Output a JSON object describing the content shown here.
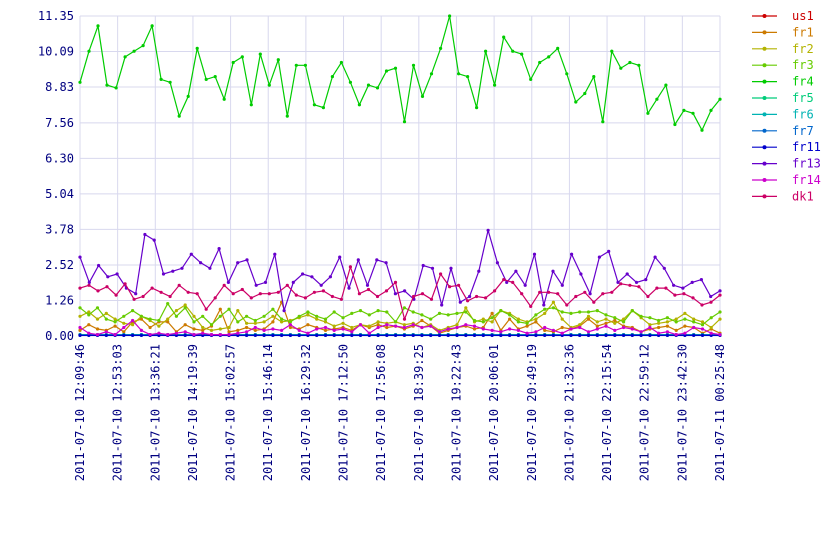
{
  "chart_data": {
    "type": "line",
    "ylim": [
      0,
      11.35
    ],
    "yticks": [
      "0.00",
      "1.26",
      "2.52",
      "3.78",
      "5.04",
      "6.30",
      "7.56",
      "8.83",
      "10.09",
      "11.35"
    ],
    "xticks": [
      "2011-07-10 12:09:46",
      "2011-07-10 12:53:03",
      "2011-07-10 13:36:21",
      "2011-07-10 14:19:39",
      "2011-07-10 15:02:57",
      "2011-07-10 15:46:14",
      "2011-07-10 16:29:32",
      "2011-07-10 17:12:50",
      "2011-07-10 17:56:08",
      "2011-07-10 18:39:25",
      "2011-07-10 19:22:43",
      "2011-07-10 20:06:01",
      "2011-07-10 20:49:19",
      "2011-07-10 21:32:36",
      "2011-07-10 22:15:54",
      "2011-07-10 22:59:12",
      "2011-07-10 23:42:30",
      "2011-07-11 00:25:48"
    ],
    "grid": true,
    "legend_position": "right",
    "series": [
      {
        "name": "us1",
        "color": "#cc0000",
        "values": [
          0.05,
          0.05,
          0.05,
          0.05,
          0.05,
          0.05,
          0.05,
          0.05,
          0.05,
          0.05,
          0.05,
          0.05,
          0.05,
          0.05,
          0.05,
          0.05,
          0.05,
          0.05,
          0.05,
          0.05,
          0.05,
          0.05,
          0.05,
          0.05,
          0.05,
          0.05,
          0.05,
          0.05,
          0.05,
          0.05,
          0.05,
          0.05,
          0.05,
          0.05,
          0.05,
          0.05,
          0.05,
          0.05,
          0.05,
          0.05,
          0.05,
          0.05,
          0.05,
          0.05,
          0.05,
          0.05,
          0.05,
          0.05,
          0.05,
          0.05,
          0.05,
          0.05,
          0.05,
          0.05,
          0.05,
          0.05,
          0.05,
          0.05,
          0.05,
          0.05,
          0.05,
          0.05,
          0.05,
          0.05,
          0.05,
          0.05,
          0.05,
          0.05,
          0.05,
          0.05,
          0.05,
          0.05,
          0.05,
          0.05
        ]
      },
      {
        "name": "fr1",
        "color": "#cc7a00",
        "values": [
          0.2,
          0.4,
          0.25,
          0.2,
          0.35,
          0.15,
          0.5,
          0.6,
          0.3,
          0.5,
          0.5,
          0.15,
          0.4,
          0.25,
          0.2,
          0.35,
          0.95,
          0.15,
          0.2,
          0.3,
          0.2,
          0.25,
          0.5,
          1.2,
          0.3,
          0.25,
          0.4,
          0.3,
          0.2,
          0.25,
          0.3,
          0.2,
          0.4,
          0.3,
          0.4,
          0.3,
          0.35,
          0.25,
          0.35,
          0.55,
          0.35,
          0.1,
          0.2,
          0.3,
          0.35,
          0.25,
          0.3,
          0.8,
          0.2,
          0.6,
          0.25,
          0.35,
          0.5,
          0.2,
          0.15,
          0.3,
          0.25,
          0.35,
          0.6,
          0.35,
          0.45,
          0.55,
          0.35,
          0.3,
          0.15,
          0.25,
          0.3,
          0.35,
          0.2,
          0.35,
          0.3,
          0.1,
          0.25,
          0.1
        ]
      },
      {
        "name": "fr2",
        "color": "#b3b300",
        "values": [
          0.7,
          0.85,
          0.6,
          0.8,
          0.6,
          0.45,
          0.4,
          0.7,
          0.55,
          0.35,
          0.6,
          0.9,
          1.1,
          0.7,
          0.3,
          0.2,
          0.25,
          0.3,
          0.9,
          0.45,
          0.45,
          0.5,
          0.7,
          0.5,
          0.55,
          0.65,
          0.75,
          0.6,
          0.5,
          0.35,
          0.45,
          0.3,
          0.4,
          0.35,
          0.5,
          0.45,
          0.5,
          0.4,
          0.45,
          0.3,
          0.4,
          0.2,
          0.3,
          0.4,
          1.0,
          0.5,
          0.6,
          0.5,
          0.9,
          0.8,
          0.6,
          0.5,
          0.6,
          0.8,
          1.2,
          0.6,
          0.3,
          0.4,
          0.7,
          0.5,
          0.6,
          0.45,
          0.6,
          0.9,
          0.65,
          0.4,
          0.45,
          0.5,
          0.6,
          0.8,
          0.6,
          0.5,
          0.3,
          0.6
        ]
      },
      {
        "name": "fr3",
        "color": "#66cc00",
        "values": [
          1.0,
          0.75,
          1.0,
          0.6,
          0.5,
          0.7,
          0.9,
          0.7,
          0.6,
          0.55,
          1.15,
          0.7,
          1.0,
          0.5,
          0.7,
          0.4,
          0.7,
          0.95,
          0.5,
          0.7,
          0.55,
          0.7,
          0.95,
          0.6,
          0.5,
          0.7,
          0.85,
          0.7,
          0.6,
          0.85,
          0.65,
          0.8,
          0.9,
          0.75,
          0.9,
          0.85,
          0.5,
          1.0,
          0.85,
          0.75,
          0.6,
          0.8,
          0.75,
          0.8,
          0.85,
          0.55,
          0.5,
          0.65,
          0.9,
          0.75,
          0.5,
          0.45,
          0.75,
          0.95,
          1.0,
          0.85,
          0.8,
          0.85,
          0.85,
          0.9,
          0.75,
          0.65,
          0.5,
          0.9,
          0.7,
          0.65,
          0.55,
          0.65,
          0.5,
          0.6,
          0.5,
          0.4,
          0.65,
          0.85
        ]
      },
      {
        "name": "fr4",
        "color": "#00cc00",
        "values": [
          9.0,
          10.1,
          11.0,
          8.9,
          8.8,
          9.9,
          10.1,
          10.3,
          11.0,
          9.1,
          9.0,
          7.8,
          8.5,
          10.2,
          9.1,
          9.2,
          8.4,
          9.7,
          9.9,
          8.2,
          10.0,
          8.9,
          9.8,
          7.8,
          9.6,
          9.6,
          8.2,
          8.1,
          9.2,
          9.7,
          9.0,
          8.2,
          8.9,
          8.8,
          9.4,
          9.5,
          7.6,
          9.6,
          8.5,
          9.3,
          10.2,
          11.35,
          9.3,
          9.2,
          8.1,
          10.1,
          8.9,
          10.6,
          10.1,
          10.0,
          9.1,
          9.7,
          9.9,
          10.2,
          9.3,
          8.3,
          8.6,
          9.2,
          7.6,
          10.1,
          9.5,
          9.7,
          9.6,
          7.9,
          8.4,
          8.9,
          7.5,
          8.0,
          7.9,
          7.3,
          8.0,
          8.4
        ]
      },
      {
        "name": "fr5",
        "color": "#00cc7a",
        "values": [
          0.05,
          0.05,
          0.05,
          0.05,
          0.05,
          0.05,
          0.05,
          0.05,
          0.05,
          0.05,
          0.05,
          0.05,
          0.05,
          0.05,
          0.05,
          0.05,
          0.05,
          0.05,
          0.05,
          0.05,
          0.05,
          0.05,
          0.05,
          0.05,
          0.05,
          0.05,
          0.05,
          0.05,
          0.05,
          0.05,
          0.05,
          0.05,
          0.05,
          0.05,
          0.05,
          0.05,
          0.05,
          0.05,
          0.05,
          0.05,
          0.05,
          0.05,
          0.05,
          0.05,
          0.05,
          0.05,
          0.05,
          0.05,
          0.05,
          0.05,
          0.05,
          0.05,
          0.05,
          0.05,
          0.05,
          0.05,
          0.05,
          0.05,
          0.05,
          0.05,
          0.05,
          0.05,
          0.05,
          0.05,
          0.05,
          0.05,
          0.05,
          0.05,
          0.05,
          0.05,
          0.05,
          0.05,
          0.05,
          0.05
        ]
      },
      {
        "name": "fr6",
        "color": "#00b3b3",
        "values": [
          0.05,
          0.05,
          0.05,
          0.05,
          0.05,
          0.05,
          0.05,
          0.05,
          0.05,
          0.05,
          0.05,
          0.05,
          0.05,
          0.05,
          0.05,
          0.05,
          0.05,
          0.05,
          0.05,
          0.05,
          0.05,
          0.05,
          0.05,
          0.05,
          0.05,
          0.05,
          0.05,
          0.05,
          0.05,
          0.05,
          0.05,
          0.05,
          0.05,
          0.05,
          0.05,
          0.05,
          0.05,
          0.05,
          0.05,
          0.05,
          0.05,
          0.05,
          0.05,
          0.05,
          0.05,
          0.05,
          0.05,
          0.05,
          0.05,
          0.05,
          0.05,
          0.05,
          0.05,
          0.05,
          0.05,
          0.05,
          0.05,
          0.05,
          0.05,
          0.05,
          0.05,
          0.05,
          0.05,
          0.05,
          0.05,
          0.05,
          0.05,
          0.05,
          0.05,
          0.05,
          0.05,
          0.05,
          0.05,
          0.05
        ]
      },
      {
        "name": "fr7",
        "color": "#0066cc",
        "values": [
          0.03,
          0.03,
          0.03,
          0.03,
          0.03,
          0.03,
          0.03,
          0.03,
          0.03,
          0.03,
          0.03,
          0.03,
          0.03,
          0.03,
          0.03,
          0.03,
          0.03,
          0.03,
          0.03,
          0.03,
          0.03,
          0.03,
          0.03,
          0.03,
          0.03,
          0.03,
          0.03,
          0.03,
          0.03,
          0.03,
          0.03,
          0.03,
          0.03,
          0.03,
          0.03,
          0.03,
          0.03,
          0.03,
          0.03,
          0.03,
          0.03,
          0.03,
          0.03,
          0.03,
          0.03,
          0.03,
          0.03,
          0.03,
          0.03,
          0.03,
          0.03,
          0.03,
          0.03,
          0.03,
          0.03,
          0.03,
          0.03,
          0.03,
          0.03,
          0.03,
          0.03,
          0.03,
          0.03,
          0.03,
          0.03,
          0.03,
          0.03,
          0.03,
          0.03,
          0.03,
          0.03,
          0.03,
          0.03,
          0.03
        ]
      },
      {
        "name": "fr11",
        "color": "#0000cc",
        "values": [
          0.02,
          0.02,
          0.02,
          0.02,
          0.02,
          0.02,
          0.02,
          0.02,
          0.02,
          0.02,
          0.02,
          0.02,
          0.02,
          0.02,
          0.02,
          0.02,
          0.02,
          0.02,
          0.02,
          0.02,
          0.02,
          0.02,
          0.02,
          0.02,
          0.02,
          0.02,
          0.02,
          0.02,
          0.02,
          0.02,
          0.02,
          0.02,
          0.02,
          0.02,
          0.02,
          0.02,
          0.02,
          0.02,
          0.02,
          0.02,
          0.02,
          0.02,
          0.02,
          0.02,
          0.02,
          0.02,
          0.02,
          0.02,
          0.02,
          0.02,
          0.02,
          0.02,
          0.02,
          0.02,
          0.02,
          0.02,
          0.02,
          0.02,
          0.02,
          0.02,
          0.02,
          0.02,
          0.02,
          0.02,
          0.02,
          0.02,
          0.02,
          0.02,
          0.02,
          0.02,
          0.02,
          0.02,
          0.02,
          0.02
        ]
      },
      {
        "name": "fr13",
        "color": "#6600cc",
        "values": [
          2.8,
          1.9,
          2.5,
          2.1,
          2.2,
          1.7,
          1.5,
          3.6,
          3.4,
          2.2,
          2.3,
          2.4,
          2.9,
          2.6,
          2.4,
          3.1,
          1.9,
          2.6,
          2.7,
          1.8,
          1.9,
          2.9,
          0.9,
          1.9,
          2.2,
          2.1,
          1.8,
          2.1,
          2.8,
          1.7,
          2.7,
          1.8,
          2.7,
          2.6,
          1.5,
          1.6,
          1.3,
          2.5,
          2.4,
          1.1,
          2.4,
          1.2,
          1.4,
          2.3,
          3.75,
          2.6,
          1.9,
          2.3,
          1.8,
          2.9,
          1.1,
          2.3,
          1.8,
          2.9,
          2.2,
          1.5,
          2.8,
          3.0,
          1.9,
          2.2,
          1.9,
          2.0,
          2.8,
          2.4,
          1.8,
          1.7,
          1.9,
          2.0,
          1.4,
          1.6
        ]
      },
      {
        "name": "fr14",
        "color": "#cc00cc",
        "values": [
          0.3,
          0.1,
          0.05,
          0.15,
          0.05,
          0.3,
          0.55,
          0.2,
          0.05,
          0.1,
          0.05,
          0.1,
          0.15,
          0.05,
          0.1,
          0.05,
          0.05,
          0.05,
          0.1,
          0.15,
          0.3,
          0.2,
          0.25,
          0.2,
          0.4,
          0.2,
          0.1,
          0.25,
          0.3,
          0.2,
          0.25,
          0.15,
          0.4,
          0.1,
          0.3,
          0.4,
          0.35,
          0.3,
          0.4,
          0.3,
          0.35,
          0.15,
          0.25,
          0.3,
          0.4,
          0.35,
          0.25,
          0.2,
          0.15,
          0.25,
          0.2,
          0.1,
          0.15,
          0.3,
          0.2,
          0.1,
          0.25,
          0.3,
          0.15,
          0.25,
          0.35,
          0.2,
          0.3,
          0.25,
          0.15,
          0.3,
          0.1,
          0.15,
          0.05,
          0.1,
          0.3,
          0.25,
          0.1,
          0.05
        ]
      },
      {
        "name": "dk1",
        "color": "#cc0066",
        "values": [
          1.7,
          1.8,
          1.6,
          1.75,
          1.45,
          1.85,
          1.3,
          1.4,
          1.7,
          1.55,
          1.4,
          1.8,
          1.55,
          1.5,
          0.95,
          1.35,
          1.8,
          1.5,
          1.65,
          1.35,
          1.5,
          1.5,
          1.55,
          1.8,
          1.45,
          1.35,
          1.55,
          1.6,
          1.4,
          1.3,
          2.45,
          1.5,
          1.65,
          1.4,
          1.6,
          1.9,
          0.6,
          1.4,
          1.5,
          1.3,
          2.2,
          1.75,
          1.8,
          1.25,
          1.4,
          1.35,
          1.6,
          2.0,
          1.9,
          1.5,
          1.05,
          1.55,
          1.55,
          1.5,
          1.1,
          1.4,
          1.55,
          1.2,
          1.5,
          1.55,
          1.85,
          1.8,
          1.75,
          1.4,
          1.7,
          1.7,
          1.45,
          1.5,
          1.35,
          1.1,
          1.2,
          1.45
        ]
      }
    ]
  }
}
